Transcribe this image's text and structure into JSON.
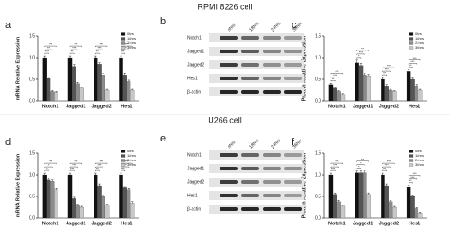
{
  "figure_titles": [
    "RPMI 8226 cell",
    "U266 cell"
  ],
  "chart_data": [
    {
      "type": "bar",
      "label": "a",
      "y_label": "mRNA Relative Expression",
      "categories": [
        "Notch1",
        "Jagged1",
        "Jagged2",
        "Hes1"
      ],
      "series": [
        {
          "name": "0hrs",
          "color": "#111111",
          "values": [
            1.0,
            1.0,
            1.0,
            1.0
          ],
          "errors": [
            0.04,
            0.04,
            0.04,
            0.04
          ]
        },
        {
          "name": "18hrs",
          "color": "#555555",
          "values": [
            0.52,
            0.8,
            0.85,
            0.6
          ],
          "errors": [
            0.03,
            0.04,
            0.03,
            0.04
          ]
        },
        {
          "name": "24hrs",
          "color": "#8c8c8c",
          "values": [
            0.22,
            0.4,
            0.6,
            0.45
          ],
          "errors": [
            0.02,
            0.03,
            0.03,
            0.03
          ]
        },
        {
          "name": "36hrs",
          "color": "#c8c8c8",
          "values": [
            0.2,
            0.3,
            0.25,
            0.25
          ],
          "errors": [
            0.02,
            0.02,
            0.02,
            0.02
          ]
        }
      ],
      "significance": [
        [
          "***",
          "***",
          "***"
        ],
        [
          "**",
          "***",
          "***"
        ],
        [
          "**",
          "***",
          "***"
        ],
        [
          "***",
          "***",
          "***"
        ]
      ],
      "ylim": [
        0,
        1.5
      ],
      "yticks": [
        {
          "value": 0,
          "label": "0.0"
        },
        {
          "value": 0.5,
          "label": "0.5"
        },
        {
          "value": 1,
          "label": "1.0"
        },
        {
          "value": 1.5,
          "label": "1.5"
        }
      ]
    },
    {
      "type": "bar",
      "label": "c",
      "y_label": "Protein Relative Expression",
      "categories": [
        "Notch1",
        "Jagged1",
        "Jagged2",
        "Hes1"
      ],
      "series": [
        {
          "name": "0hrs",
          "color": "#111111",
          "values": [
            0.38,
            0.88,
            0.5,
            0.68
          ],
          "errors": [
            0.03,
            0.06,
            0.04,
            0.04
          ]
        },
        {
          "name": "18hrs",
          "color": "#555555",
          "values": [
            0.3,
            0.82,
            0.35,
            0.5
          ],
          "errors": [
            0.02,
            0.05,
            0.03,
            0.03
          ]
        },
        {
          "name": "24hrs",
          "color": "#8c8c8c",
          "values": [
            0.22,
            0.6,
            0.25,
            0.35
          ],
          "errors": [
            0.02,
            0.03,
            0.02,
            0.03
          ]
        },
        {
          "name": "36hrs",
          "color": "#c8c8c8",
          "values": [
            0.15,
            0.58,
            0.22,
            0.25
          ],
          "errors": [
            0.02,
            0.03,
            0.02,
            0.02
          ]
        }
      ],
      "significance": [
        [
          "**",
          "***",
          "***"
        ],
        [
          "*",
          "***",
          "***"
        ],
        [
          "**",
          "***",
          "***"
        ],
        [
          "**",
          "***",
          "***"
        ]
      ],
      "ylim": [
        0,
        1.5
      ],
      "yticks": [
        {
          "value": 0,
          "label": "0.0"
        },
        {
          "value": 0.5,
          "label": "0.5"
        },
        {
          "value": 1,
          "label": "1.0"
        },
        {
          "value": 1.5,
          "label": "1.5"
        }
      ]
    },
    {
      "type": "bar",
      "label": "d",
      "y_label": "mRNA Relative Expression",
      "categories": [
        "Notch1",
        "Jagged1",
        "Jagged2",
        "Hes1"
      ],
      "series": [
        {
          "name": "0hrs",
          "color": "#111111",
          "values": [
            1.0,
            1.0,
            1.0,
            1.0
          ],
          "errors": [
            0.04,
            0.04,
            0.04,
            0.04
          ]
        },
        {
          "name": "18hrs",
          "color": "#555555",
          "values": [
            0.88,
            0.45,
            0.75,
            0.7
          ],
          "errors": [
            0.03,
            0.03,
            0.04,
            0.03
          ]
        },
        {
          "name": "24hrs",
          "color": "#8c8c8c",
          "values": [
            0.85,
            0.3,
            0.5,
            0.65
          ],
          "errors": [
            0.03,
            0.02,
            0.03,
            0.03
          ]
        },
        {
          "name": "36hrs",
          "color": "#c8c8c8",
          "values": [
            0.65,
            0.25,
            0.3,
            0.35
          ],
          "errors": [
            0.03,
            0.02,
            0.02,
            0.03
          ]
        }
      ],
      "significance": [
        [
          "*",
          "**",
          "***"
        ],
        [
          "***",
          "***",
          "***"
        ],
        [
          "**",
          "***",
          "***"
        ],
        [
          "***",
          "***",
          "***"
        ]
      ],
      "ylim": [
        0,
        1.5
      ],
      "yticks": [
        {
          "value": 0,
          "label": "0.0"
        },
        {
          "value": 0.5,
          "label": "0.5"
        },
        {
          "value": 1,
          "label": "1.0"
        },
        {
          "value": 1.5,
          "label": "1.5"
        }
      ]
    },
    {
      "type": "bar",
      "label": "f",
      "y_label": "Protein Relative Expression",
      "categories": [
        "Notch1",
        "Jagged1",
        "Jagged2",
        "Hes1"
      ],
      "series": [
        {
          "name": "0hrs",
          "color": "#111111",
          "values": [
            1.0,
            1.05,
            1.0,
            0.72
          ],
          "errors": [
            0.04,
            0.04,
            0.04,
            0.04
          ]
        },
        {
          "name": "18hrs",
          "color": "#555555",
          "values": [
            0.55,
            1.05,
            0.75,
            0.5
          ],
          "errors": [
            0.03,
            0.04,
            0.04,
            0.03
          ]
        },
        {
          "name": "24hrs",
          "color": "#8c8c8c",
          "values": [
            0.38,
            1.05,
            0.38,
            0.22
          ],
          "errors": [
            0.03,
            0.04,
            0.03,
            0.02
          ]
        },
        {
          "name": "36hrs",
          "color": "#c8c8c8",
          "values": [
            0.28,
            0.55,
            0.25,
            0.12
          ],
          "errors": [
            0.02,
            0.03,
            0.02,
            0.02
          ]
        }
      ],
      "significance": [
        [
          "***",
          "***",
          "***"
        ],
        [
          "*",
          "*",
          "***"
        ],
        [
          "**",
          "***",
          "***"
        ],
        [
          "**",
          "***",
          "***"
        ]
      ],
      "ylim": [
        0,
        1.5
      ],
      "yticks": [
        {
          "value": 0,
          "label": "0.0"
        },
        {
          "value": 0.5,
          "label": "0.5"
        },
        {
          "value": 1,
          "label": "1.0"
        },
        {
          "value": 1.5,
          "label": "1.5"
        }
      ]
    }
  ],
  "blots": [
    {
      "label": "b",
      "columns": [
        "0hrs",
        "18hrs",
        "24hrs",
        "36hrs"
      ],
      "rows": [
        "Notch1",
        "Jagged1",
        "Jagged2",
        "Hes1",
        "β-actin"
      ]
    },
    {
      "label": "e",
      "columns": [
        "0hrs",
        "18hrs",
        "24hrs",
        "36hrs"
      ],
      "rows": [
        "Notch1",
        "Jagged1",
        "Jagged2",
        "Hes1",
        "β-actin"
      ]
    }
  ]
}
